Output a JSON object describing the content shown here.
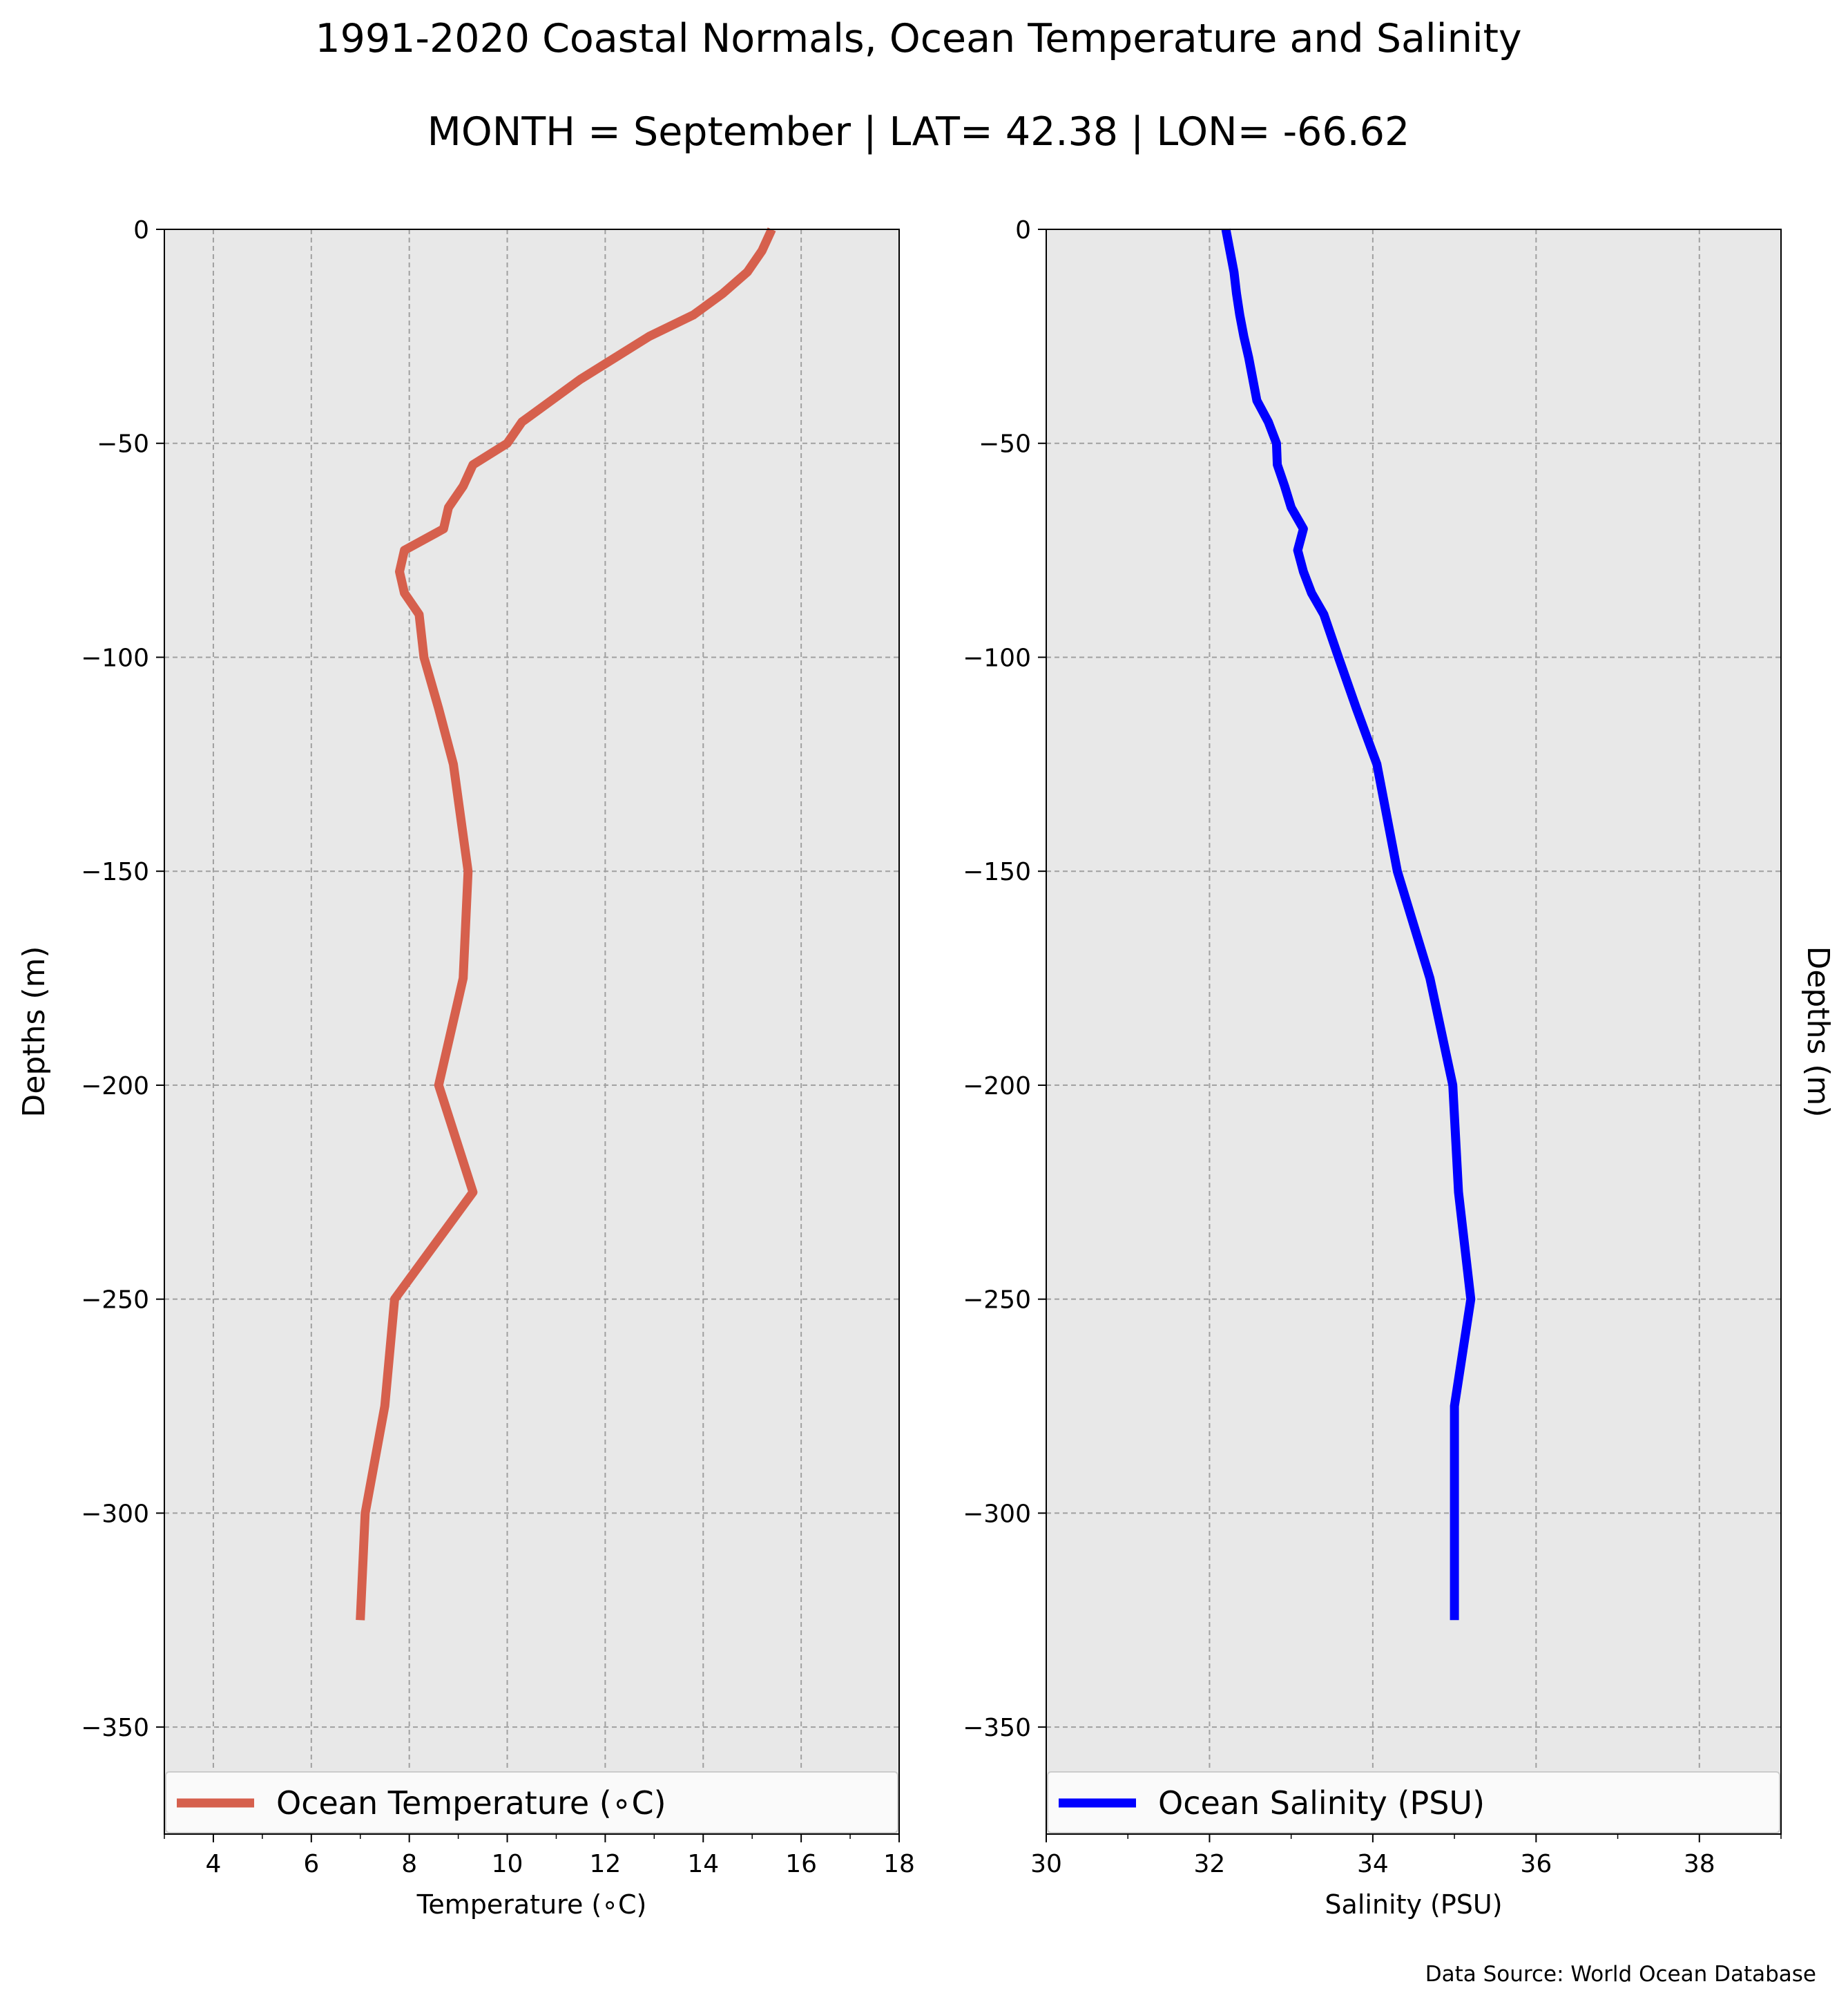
{
  "title": "1991-2020 Coastal Normals, Ocean Temperature and Salinity",
  "subtitle": "MONTH = September | LAT= 42.38 | LON= -66.62",
  "source_note": "Data Source: World Ocean Database",
  "chart_data": [
    {
      "type": "line",
      "orientation": "vertical-profile",
      "xlabel": "Temperature ($^\\circ$C)",
      "xlabel_display": "Temperature (∘C)",
      "ylabel": "Depths (m)",
      "ylabel_side": "left",
      "xlim": [
        3,
        18
      ],
      "ylim": [
        -375,
        0
      ],
      "xticks": [
        4,
        6,
        8,
        10,
        12,
        14,
        16,
        18
      ],
      "xticks_minor": [
        3,
        5,
        7,
        9,
        11,
        13,
        15,
        17
      ],
      "yticks": [
        0,
        -50,
        -100,
        -150,
        -200,
        -250,
        -300,
        -350
      ],
      "ytick_labels": [
        "0",
        "−50",
        "−100",
        "−150",
        "−200",
        "−250",
        "−300",
        "−350"
      ],
      "grid": true,
      "legend_position": "bottom",
      "background": "#e8e8e8",
      "series": [
        {
          "name": "Ocean Temperature (∘C)",
          "color": "#d6604d",
          "x": [
            15.4,
            15.2,
            14.9,
            14.4,
            13.8,
            12.9,
            12.2,
            11.5,
            10.9,
            10.3,
            10.0,
            9.3,
            9.1,
            8.8,
            8.7,
            7.9,
            7.8,
            7.9,
            8.2,
            8.3,
            8.6,
            8.9,
            9.2,
            9.1,
            8.6,
            9.3,
            7.7,
            7.5,
            7.1,
            7.0
          ],
          "y": [
            0,
            -5,
            -10,
            -15,
            -20,
            -25,
            -30,
            -35,
            -40,
            -45,
            -50,
            -55,
            -60,
            -65,
            -70,
            -75,
            -80,
            -85,
            -90,
            -100,
            -112,
            -125,
            -150,
            -175,
            -200,
            -225,
            -250,
            -275,
            -300,
            -325
          ]
        }
      ]
    },
    {
      "type": "line",
      "orientation": "vertical-profile",
      "xlabel": "Salinity (PSU)",
      "ylabel": "Depths (m)",
      "ylabel_side": "right",
      "xlim": [
        30,
        39
      ],
      "ylim": [
        -375,
        0
      ],
      "xticks": [
        30,
        32,
        34,
        36,
        38
      ],
      "xticks_minor": [
        31,
        33,
        35,
        37,
        39
      ],
      "yticks": [
        0,
        -50,
        -100,
        -150,
        -200,
        -250,
        -300,
        -350
      ],
      "ytick_labels": [
        "0",
        "−50",
        "−100",
        "−150",
        "−200",
        "−250",
        "−300",
        "−350"
      ],
      "grid": true,
      "legend_position": "bottom",
      "background": "#e8e8e8",
      "series": [
        {
          "name": "Ocean Salinity (PSU)",
          "color": "#0000ff",
          "x": [
            32.2,
            32.25,
            32.3,
            32.33,
            32.37,
            32.42,
            32.48,
            32.53,
            32.58,
            32.72,
            32.82,
            32.83,
            32.92,
            33.0,
            33.15,
            33.08,
            33.15,
            33.25,
            33.4,
            33.58,
            33.8,
            34.05,
            34.3,
            34.7,
            34.98,
            35.05,
            35.2,
            35.0,
            35.0,
            35.0
          ],
          "y": [
            0,
            -5,
            -10,
            -15,
            -20,
            -25,
            -30,
            -35,
            -40,
            -45,
            -50,
            -55,
            -60,
            -65,
            -70,
            -75,
            -80,
            -85,
            -90,
            -100,
            -112,
            -125,
            -150,
            -175,
            -200,
            -225,
            -250,
            -275,
            -300,
            -325
          ]
        }
      ]
    }
  ]
}
